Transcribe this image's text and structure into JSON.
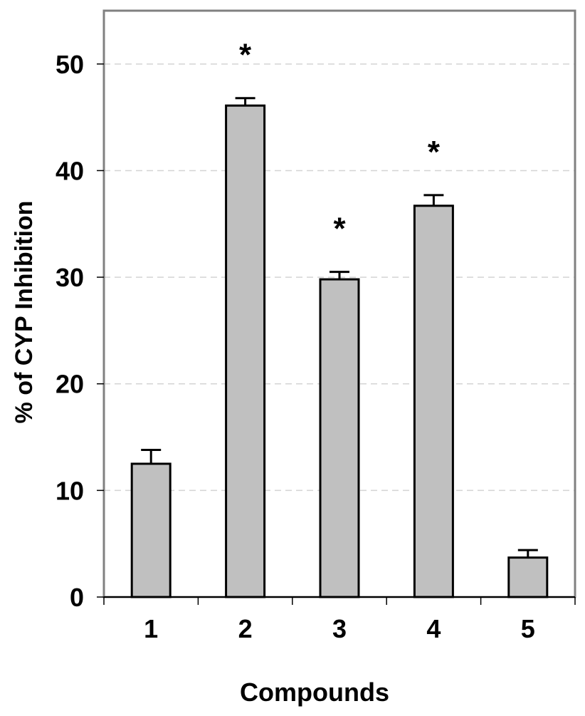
{
  "chart_data": {
    "type": "bar",
    "title": "",
    "xlabel": "Compounds",
    "ylabel": "% of CYP Inhibition",
    "categories": [
      "1",
      "2",
      "3",
      "4",
      "5"
    ],
    "values": [
      12.5,
      46.1,
      29.8,
      36.7,
      3.7
    ],
    "errors": [
      1.3,
      0.7,
      0.7,
      1.0,
      0.7
    ],
    "significance": [
      "",
      "*",
      "*",
      "*",
      ""
    ],
    "ylim": [
      0,
      55
    ],
    "yticks": [
      "0",
      "10",
      "20",
      "30",
      "40",
      "50"
    ],
    "grid": true,
    "legend": "none",
    "colors": {
      "bar_fill": "#c0c0c0",
      "bar_stroke": "#000000",
      "frame": "#808080",
      "gridline": "#d4d4d4"
    }
  }
}
